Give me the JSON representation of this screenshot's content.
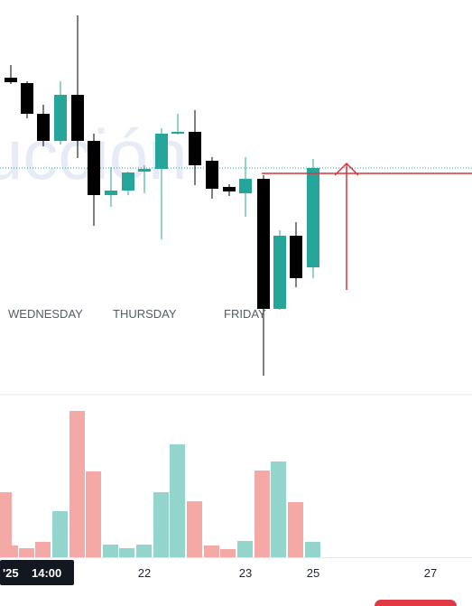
{
  "watermark": "ucción",
  "price_pane": {
    "day_labels": [
      "WEDNESDAY",
      "THURSDAY",
      "FRIDAY"
    ]
  },
  "time_axis": {
    "ticks": [
      "22",
      "23",
      "25",
      "27"
    ],
    "active_badge": {
      "year": "'25",
      "time": "14:00"
    }
  },
  "colors": {
    "bull": "#26a69a",
    "bear": "#000000",
    "vol_bull": "#93d5cd",
    "vol_bear": "#f4a9a7",
    "marker": "#e0303a",
    "last_price": "#26a69a"
  }
}
